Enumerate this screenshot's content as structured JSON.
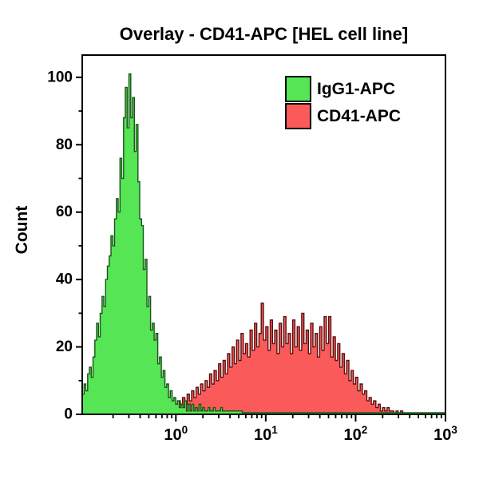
{
  "title": "Overlay - CD41-APC [HEL cell line]",
  "legend": {
    "items": [
      {
        "label": "IgG1-APC",
        "fill": "#55e555"
      },
      {
        "label": "CD41-APC",
        "fill": "#fb5a5a"
      }
    ]
  },
  "chart_data": {
    "type": "area",
    "subtype": "flow-cytometry-overlay-histogram",
    "title": "Overlay - CD41-APC [HEL cell line]",
    "xlabel": "",
    "ylabel": "Count",
    "x_scale": "log10",
    "x_range_log": [
      -1.042,
      3.0
    ],
    "ylim": [
      0,
      106.6
    ],
    "grid": false,
    "legend_position": "top-right-inside",
    "axis_color": "#000000",
    "background": "#ffffff",
    "y_ticks_major": [
      0,
      20,
      40,
      60,
      80,
      100
    ],
    "y_ticks_minor": [
      10,
      30,
      50,
      70,
      90
    ],
    "x_ticks_major": [
      {
        "log": 0,
        "base": "10",
        "exponent": "0"
      },
      {
        "log": 1,
        "base": "10",
        "exponent": "1"
      },
      {
        "log": 2,
        "base": "10",
        "exponent": "2"
      },
      {
        "log": 3,
        "base": "10",
        "exponent": "3"
      }
    ],
    "x_minor_decades": [
      -1,
      0,
      1,
      2
    ],
    "series": [
      {
        "name": "CD41-APC",
        "fill": "#fb5a5a",
        "stroke": "#5a1010",
        "log_start": -0.35,
        "log_step": 0.025,
        "tail_to": null,
        "tail_count": 0,
        "counts": [
          1,
          0,
          2,
          1,
          2,
          1,
          3,
          1,
          2,
          3,
          2,
          4,
          2,
          3,
          2,
          4,
          3,
          5,
          3,
          6,
          4,
          7,
          5,
          8,
          6,
          9,
          7,
          10,
          8,
          12,
          9,
          13,
          10,
          15,
          11,
          16,
          12,
          18,
          14,
          20,
          15,
          22,
          16,
          24,
          18,
          21,
          17,
          25,
          19,
          27,
          20,
          24,
          33,
          22,
          26,
          19,
          28,
          21,
          25,
          18,
          27,
          20,
          29,
          21,
          24,
          18,
          28,
          20,
          26,
          19,
          30,
          21,
          25,
          18,
          27,
          20,
          24,
          17,
          26,
          19,
          29,
          21,
          29,
          17,
          23,
          16,
          21,
          14,
          18,
          12,
          16,
          10,
          13,
          9,
          11,
          7,
          9,
          6,
          7,
          4,
          5,
          3,
          4,
          2,
          3,
          1,
          2,
          1,
          2,
          1,
          1,
          0,
          1,
          0,
          1,
          0,
          0
        ]
      },
      {
        "name": "IgG1-APC",
        "fill": "#55e555",
        "stroke": "#175517",
        "log_start": -1.042,
        "log_step": 0.02,
        "tail_to": 3.0,
        "tail_count": 0.5,
        "counts": [
          6,
          9,
          7,
          12,
          14,
          11,
          17,
          22,
          27,
          23,
          30,
          35,
          32,
          40,
          44,
          47,
          53,
          50,
          58,
          64,
          60,
          76,
          70,
          88,
          97,
          85,
          101,
          88,
          94,
          78,
          86,
          69,
          58,
          56,
          43,
          46,
          32,
          35,
          25,
          27,
          22,
          24,
          15,
          17,
          11,
          13,
          8,
          9,
          5,
          7,
          4,
          5,
          3,
          4,
          2,
          3,
          2,
          4,
          1,
          3,
          1,
          3,
          1,
          2,
          1,
          3,
          1,
          2,
          1,
          1,
          2,
          1,
          1,
          2,
          1,
          1,
          1,
          2,
          1,
          1,
          1,
          1,
          1,
          1,
          1,
          1,
          1,
          1,
          1,
          0.5
        ]
      }
    ]
  }
}
